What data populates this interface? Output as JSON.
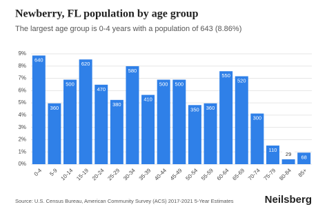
{
  "chart_data": {
    "type": "bar",
    "title": "Newberry, FL population by age group",
    "subtitle": "The largest age group is 0-4 years with a population of 643 (8.86%)",
    "categories": [
      "0-4",
      "5-9",
      "10-14",
      "15-19",
      "20-24",
      "25-29",
      "30-34",
      "35-39",
      "40-44",
      "45-49",
      "50-54",
      "55-59",
      "60-64",
      "65-69",
      "70-74",
      "75-79",
      "80-84",
      "85+"
    ],
    "values": [
      8.86,
      4.96,
      6.89,
      8.54,
      6.48,
      5.24,
      7.99,
      5.65,
      6.89,
      6.89,
      4.82,
      4.96,
      7.58,
      7.17,
      4.13,
      1.52,
      0.4,
      0.94
    ],
    "value_labels": [
      "640",
      "360",
      "500",
      "620",
      "470",
      "380",
      "580",
      "410",
      "500",
      "500",
      "350",
      "360",
      "550",
      "520",
      "300",
      "110",
      "29",
      "68"
    ],
    "color": "#2f80e8",
    "ylim": [
      0,
      9
    ],
    "yticks": [
      {
        "value": 0,
        "label": "0%"
      },
      {
        "value": 1,
        "label": "1%"
      },
      {
        "value": 2,
        "label": "2%"
      },
      {
        "value": 3,
        "label": "3%"
      },
      {
        "value": 4,
        "label": "4%"
      },
      {
        "value": 5,
        "label": "5%"
      },
      {
        "value": 6,
        "label": "6%"
      },
      {
        "value": 7,
        "label": "7%"
      },
      {
        "value": 8,
        "label": "8%"
      },
      {
        "value": 9,
        "label": "9%"
      }
    ],
    "grid": true,
    "source": "Source: U.S. Census Bureau, American Community Survey (ACS) 2017-2021 5-Year Estimates",
    "brand": "Neilsberg"
  }
}
